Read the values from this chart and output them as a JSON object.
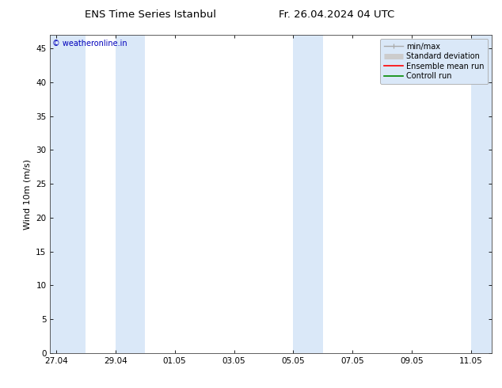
{
  "title_left": "ENS Time Series Istanbul",
  "title_right": "Fr. 26.04.2024 04 UTC",
  "watermark": "© weatheronline.in",
  "ylabel": "Wind 10m (m/s)",
  "ylim": [
    0,
    47
  ],
  "yticks": [
    0,
    5,
    10,
    15,
    20,
    25,
    30,
    35,
    40,
    45
  ],
  "x_tick_labels": [
    "27.04",
    "29.04",
    "01.05",
    "03.05",
    "05.05",
    "07.05",
    "09.05",
    "11.05"
  ],
  "x_tick_positions": [
    0,
    2,
    4,
    6,
    8,
    10,
    12,
    14
  ],
  "x_lim": [
    -0.2,
    14.7
  ],
  "shaded_bands": [
    [
      -0.2,
      1.0
    ],
    [
      2.0,
      3.0
    ],
    [
      8.0,
      9.0
    ],
    [
      14.0,
      14.7
    ]
  ],
  "shaded_color": "#dae8f8",
  "bg_color": "#ffffff",
  "legend_box_color": "#dae8f8",
  "legend_items": [
    {
      "label": "min/max",
      "color": "#aaaaaa",
      "linewidth": 1.0
    },
    {
      "label": "Standard deviation",
      "color": "#cccccc",
      "linewidth": 5
    },
    {
      "label": "Ensemble mean run",
      "color": "#ff0000",
      "linewidth": 1.2
    },
    {
      "label": "Controll run",
      "color": "#008800",
      "linewidth": 1.2
    }
  ],
  "watermark_color": "#0000bb",
  "title_fontsize": 9.5,
  "ylabel_fontsize": 8,
  "tick_fontsize": 7.5,
  "legend_fontsize": 7,
  "watermark_fontsize": 7
}
